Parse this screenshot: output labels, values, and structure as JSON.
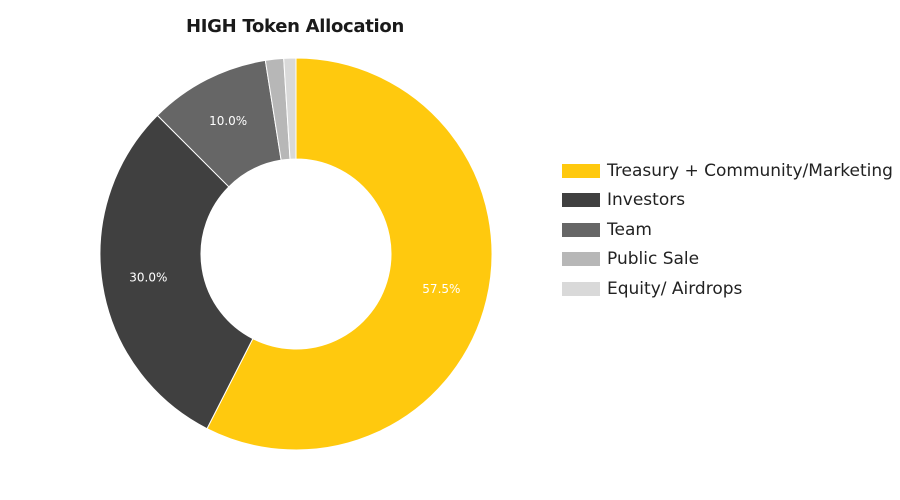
{
  "chart_data": {
    "type": "pie",
    "title": "HIGH Token Allocation",
    "donut": true,
    "legend_position": "right",
    "slices": [
      {
        "name": "Treasury + Community/Marketing",
        "value": 57.5,
        "label": "57.5%",
        "color": "#FFC90E"
      },
      {
        "name": "Investors",
        "value": 30.0,
        "label": "30.0%",
        "color": "#404040"
      },
      {
        "name": "Team",
        "value": 10.0,
        "label": "10.0%",
        "color": "#666666"
      },
      {
        "name": "Public Sale",
        "value": 1.5,
        "label": "",
        "color": "#B7B7B7"
      },
      {
        "name": "Equity/ Airdrops",
        "value": 1.0,
        "label": "",
        "color": "#D9D9D9"
      }
    ]
  }
}
